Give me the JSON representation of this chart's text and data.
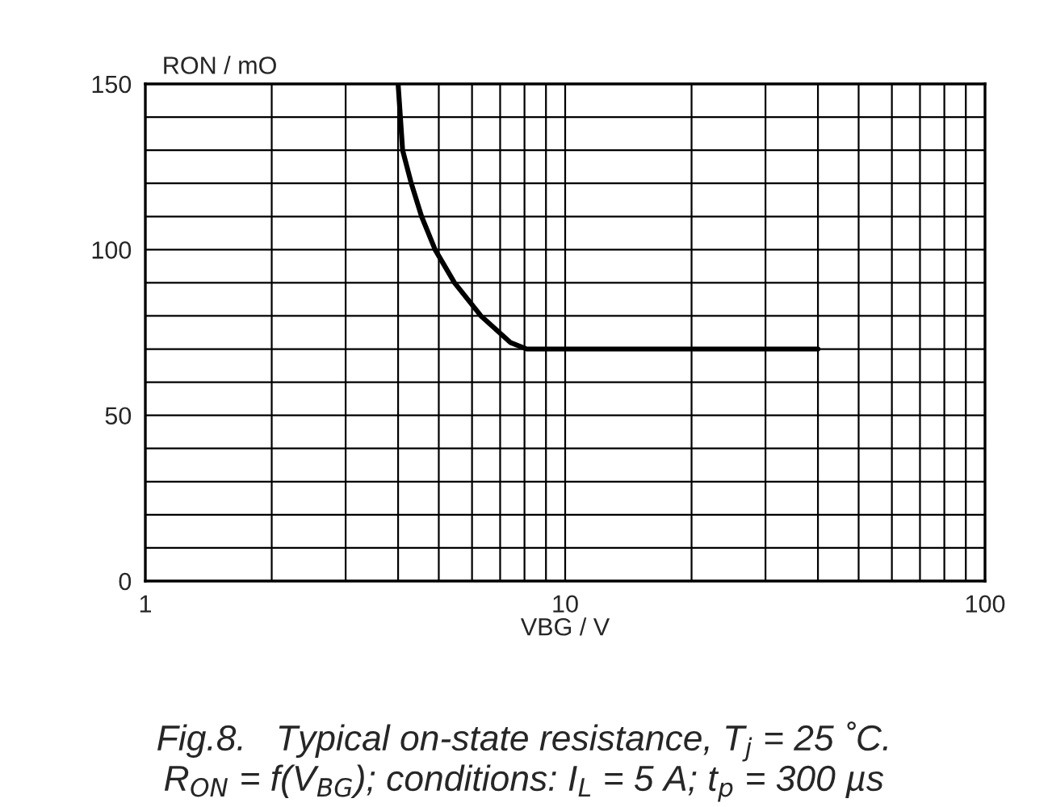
{
  "chart_data": {
    "type": "line",
    "title": "Fig.8.   Typical on-state resistance, T$_{j}$ = 25 ˚C.",
    "subtitle": "R$_{ON}$ = f(V$_{BG}$); conditions: I$_{L}$ = 5 A; t$_{p}$ = 300 µs",
    "xlabel": "VBG / V",
    "ylabel": "RON / mO",
    "series": [
      {
        "color": "#000000",
        "x": [
          4.0,
          4.05,
          4.1,
          4.3,
          4.55,
          4.9,
          5.45,
          6.3,
          7.4,
          8.1,
          10,
          20,
          40
        ],
        "values": [
          150,
          140,
          130,
          120,
          110,
          100,
          90,
          80,
          72,
          70,
          70,
          70,
          70
        ]
      }
    ],
    "log": "x",
    "xlim": [
      1,
      100
    ],
    "ylim": [
      0,
      150
    ],
    "xticks": [
      1,
      {
        "value": 2,
        "label": null
      },
      {
        "value": 3,
        "label": null
      },
      {
        "value": 4,
        "label": null
      },
      {
        "value": 5,
        "label": null
      },
      {
        "value": 6,
        "label": null
      },
      {
        "value": 7,
        "label": null
      },
      {
        "value": 8,
        "label": null
      },
      {
        "value": 9,
        "label": null
      },
      10,
      {
        "value": 20,
        "label": null
      },
      {
        "value": 30,
        "label": null
      },
      {
        "value": 40,
        "label": null
      },
      {
        "value": 50,
        "label": null
      },
      {
        "value": 60,
        "label": null
      },
      {
        "value": 70,
        "label": null
      },
      {
        "value": 80,
        "label": null
      },
      {
        "value": 90,
        "label": null
      },
      100
    ],
    "yticks": [
      0,
      {
        "value": 10,
        "label": null
      },
      {
        "value": 20,
        "label": null
      },
      {
        "value": 30,
        "label": null
      },
      {
        "value": 40,
        "label": null
      },
      50,
      {
        "value": 60,
        "label": null
      },
      {
        "value": 70,
        "label": null
      },
      {
        "value": 80,
        "label": null
      },
      {
        "value": 90,
        "label": null
      },
      100,
      {
        "value": 110,
        "label": null
      },
      {
        "value": 120,
        "label": null
      },
      {
        "value": 130,
        "label": null
      },
      {
        "value": 140,
        "label": null
      },
      150
    ],
    "grid": true,
    "marker": "none",
    "line_style": "solid"
  }
}
